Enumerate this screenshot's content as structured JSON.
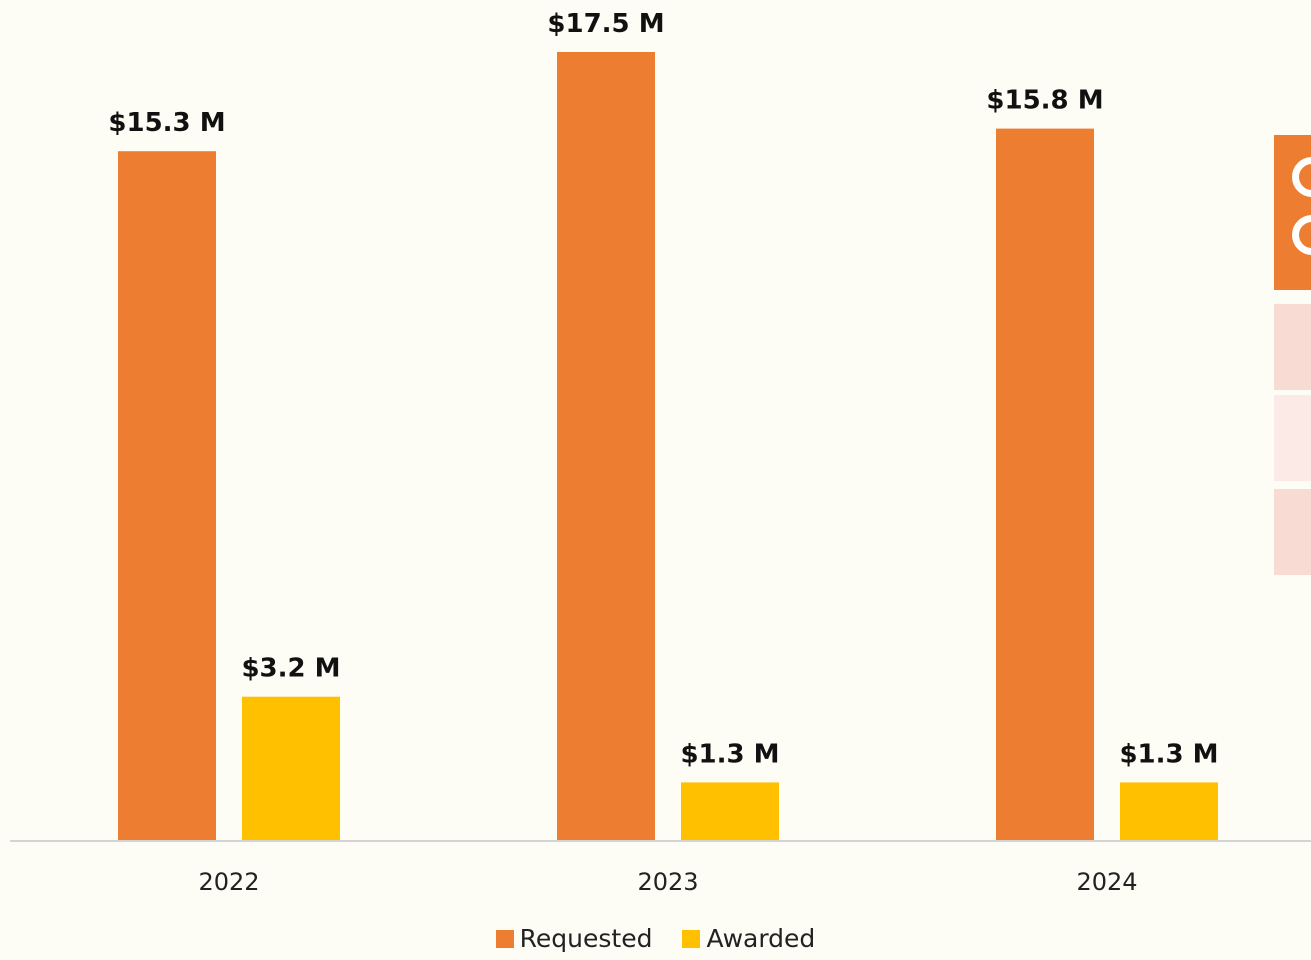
{
  "chart_data": {
    "type": "bar",
    "categories": [
      "2022",
      "2023",
      "2024"
    ],
    "series": [
      {
        "name": "Requested",
        "color": "#ed7d31",
        "values": [
          15.3,
          17.5,
          15.8
        ],
        "labels": [
          "$15.3 M",
          "$17.5 M",
          "$15.8 M"
        ]
      },
      {
        "name": "Awarded",
        "color": "#ffc000",
        "values": [
          3.2,
          1.3,
          1.3
        ],
        "labels": [
          "$3.2 M",
          "$1.3 M",
          "$1.3 M"
        ]
      }
    ],
    "ylim": [
      0,
      17.5
    ],
    "grid": false,
    "legend_position": "bottom"
  },
  "side_panel": {
    "header_color": "#ed7d31",
    "row_colors": [
      "#f8dcd3",
      "#fbeae6",
      "#f8dcd3"
    ]
  }
}
